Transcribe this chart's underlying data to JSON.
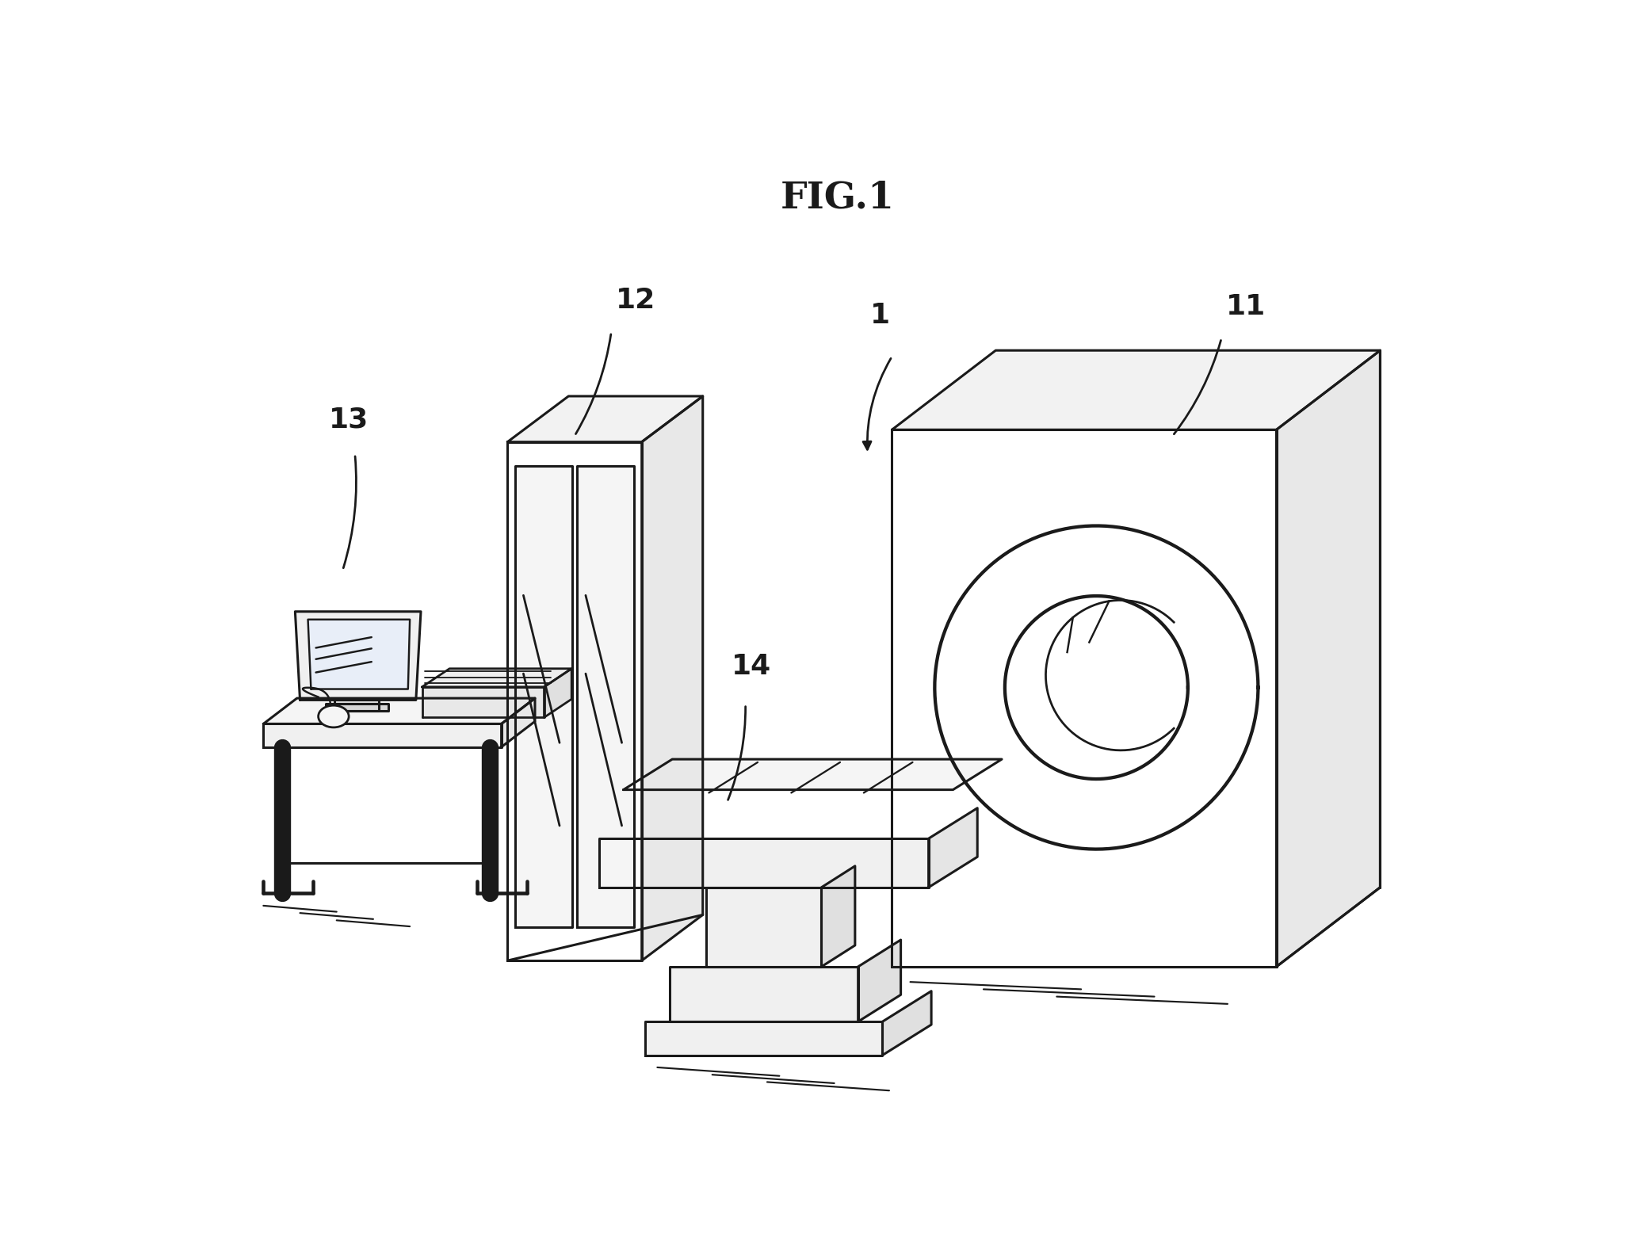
{
  "title": "FIG.1",
  "title_fontsize": 34,
  "title_fontweight": "bold",
  "bg_color": "#ffffff",
  "line_color": "#1a1a1a",
  "line_width": 2.2,
  "fig_width": 20.63,
  "fig_height": 15.61
}
